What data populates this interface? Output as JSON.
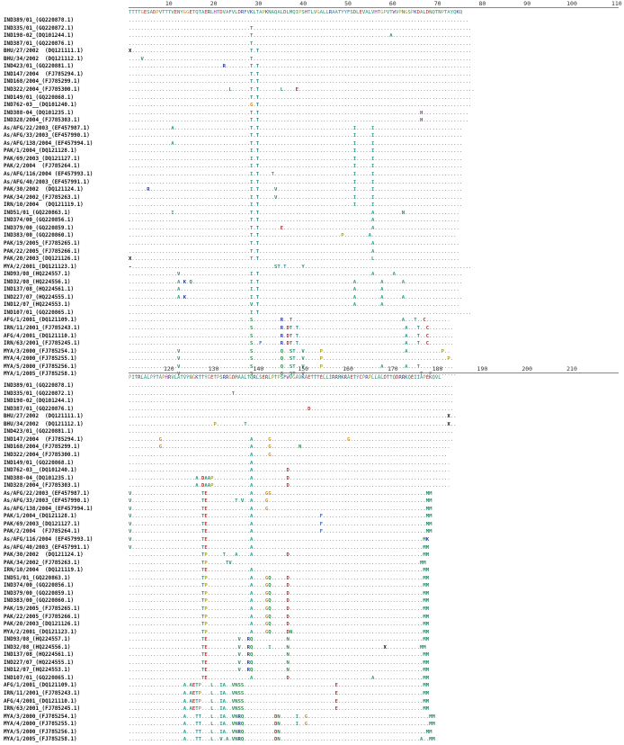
{
  "block1": {
    "ruler": [
      "10",
      "20",
      "30",
      "40",
      "50",
      "60",
      "70",
      "80",
      "90",
      "100",
      "110"
    ],
    "consensus": "TTTTGESADPVTTTVENYGGETQTAERLHTDVAFVLDRFVKLTAPKNAQALDLMQIPSHTLVGALLRAATYYFSDLEVALVHTGPVTWVPNGSPKDALDNQTNPTAYQKQ",
    "rows": [
      {
        "label": "IND389/01_(GQ220878.1)",
        "seq": "................................................................................................................"
      },
      {
        "label": "IND335/01_(GQ220872.1)",
        "seq": "........................................T........................................................................"
      },
      {
        "label": "IND198-02_(DQ101244.1)",
        "seq": "........................................T.............................................A.........................."
      },
      {
        "label": "IND387/01_(GQ220876.1)",
        "seq": "........................................T........................................................................"
      },
      {
        "label": "BHU/27/2002  (DQ121111.1)",
        "seq": "X.......................................T.T......................................................................"
      },
      {
        "label": "BHU/34/2002  (DQ121112.1)",
        "seq": "....V...................................T........................................................................"
      },
      {
        "label": "IND423/01_(GQ220881.1)",
        "seq": "...............................R........T.T......................................................................"
      },
      {
        "label": "IND147/2004  (FJ785294.1)",
        "seq": "........................................T.T......................................................................"
      },
      {
        "label": "IND168/2004_(FJ785299.1)",
        "seq": "........................................T.T......................................................................"
      },
      {
        "label": "IND322/2004_(FJ785300.1)",
        "seq": ".................................L......T.T.......L....E.........................................................."
      },
      {
        "label": "IND149/01_(GQ220868.1)",
        "seq": "........................................T.T......................................................................"
      },
      {
        "label": "IND762-03__(DQ101240.1)",
        "seq": "........................................G.T......................................................................"
      },
      {
        "label": "IND388-04_(DQ101235.1)",
        "seq": "........................................T.T.....................................................H..............."
      },
      {
        "label": "IND328/2004_(FJ785303.1)",
        "seq": "........................................T.T.....................................................H..............."
      },
      {
        "label": "As/AFG/22/2003_(EF457987.1)",
        "seq": "..............A.........................T.T...............................I.....I............................."
      },
      {
        "label": "As/AFG/33/2003_(EF457990.1)",
        "seq": "........................................T.T...............................I.....I............................."
      },
      {
        "label": "As/AFG/138/2004_(EF457994.1)",
        "seq": "..............A.........................T.T...............................I.....I............................."
      },
      {
        "label": "PAK/1/2004_(DQ121128.1)",
        "seq": "........................................I.T...............................I.....I............................."
      },
      {
        "label": "PAK/69/2003_(DQ121127.1)",
        "seq": "........................................I.T...............................I.....I............................."
      },
      {
        "label": "PAK/2/2004  (FJ785264.1)",
        "seq": "........................................I.T...............................I.....I............................."
      },
      {
        "label": "As/AFG/116/2004 (EF457993.1)",
        "seq": "........................................I.T....T..........................I.....I............................."
      },
      {
        "label": "As/AFG/40/2003_(EF457991.1)",
        "seq": "........................................I.T...............................I.....I............................."
      },
      {
        "label": "PAK/30/2002  (DQ121124.1)",
        "seq": "......R.................................I.T.....V.........................I.....I............................."
      },
      {
        "label": "PAK/34/2002_(FJ785263.1)",
        "seq": "........................................I.T.....V.........................I.....I............................."
      },
      {
        "label": "IRN/10/2004  (DQ121119.1)",
        "seq": "........................................I.T...............................I.....I............................."
      },
      {
        "label": "IND51/01_(GQ220863.1)",
        "seq": "..............I.........................T.T.....................................A.........N.................."
      },
      {
        "label": "IND374/00_(GQ220856.1)",
        "seq": "........................................T.T.....................................A............................"
      },
      {
        "label": "IND379/00_(GQ220859.1)",
        "seq": "........................................T.T.......E.............................A............................"
      },
      {
        "label": "IND383/00_(GQ220860.1)",
        "seq": "........................................T.T...........................P........A............................"
      },
      {
        "label": "PAK/19/2005_(FJ785265.1)",
        "seq": "........................................T.T.....................................A............................"
      },
      {
        "label": "PAK/22/2005_(FJ785266.1)",
        "seq": "........................................T.T.....................................A............................"
      },
      {
        "label": "PAK/20/2003_(DQ121126.1)",
        "seq": "X.......................................T.T.....................................L............................"
      },
      {
        "label": "MYA/2/2001_(DQ121123.1)",
        "seq": "-...............................................ST.T.....Y......................................................."
      },
      {
        "label": "IND93/08_(HQ224557.1)",
        "seq": "................V.......................I.T.....................................A......A......................"
      },
      {
        "label": "IND32/08_(HQ224556.1)",
        "seq": "................A.K.Q...................I.T...............................A........A......A..................."
      },
      {
        "label": "IND137/08_(HQ224561.1)",
        "seq": "................A.......................I.T...............................A........A........................."
      },
      {
        "label": "IND227/07_(HQ224555.1)",
        "seq": "................A.K.....................I.T...............................A........A......A..................."
      },
      {
        "label": "IND12/07_(HQ224553.1)",
        "seq": "........................................V.T...............................A........A........................."
      },
      {
        "label": "IND107/01_(GQ220865.1)",
        "seq": "........................................I.T......................................................................"
      },
      {
        "label": "AFG/1/2001_(DQ121109.1)",
        "seq": "........................................S.........R..T....................................A...T..C........"
      },
      {
        "label": "IRN/11/2001_(FJ785243.1)",
        "seq": "........................................S.........R.DT.T...................................A...T..C........"
      },
      {
        "label": "AFG/4/2001_(DQ121110.1)",
        "seq": "........................................S.........R.DT.T...................................A...T..C........"
      },
      {
        "label": "IRN/63/2001_(FJ785245.1)",
        "seq": "........................................S..F......R.DT.T...................................A...T..C........"
      },
      {
        "label": "MYA/3/2000_(FJ785254.1)",
        "seq": "................V.......................S.........Q..ST..V.....P...........................A...........P.."
      },
      {
        "label": "MYA/4/2000_(FJ785255.1)",
        "seq": "................V.......................S.........Q..ST..V.....P.........................................P."
      },
      {
        "label": "MYA/5/2000_(FJ785256.1)",
        "seq": "................V.......................S.........Q..ST..V.....P...................A.......A...T..........."
      },
      {
        "label": "MYA/1/2005_(FJ785258.1)",
        "seq": "................V.......................S.........Q..ST..V......................................T..P........"
      }
    ]
  },
  "block2": {
    "ruler": [
      "120",
      "130",
      "140",
      "150",
      "160",
      "170",
      "180",
      "190",
      "200",
      "210"
    ],
    "consensus": "PITRLALPYTAPHRVLATVYNGKTTYGETPSRRGDMAALTQRLSERLPTPSFWVGAVKAETTTELLIRRMKRAETYCPRPLLALDTTQDRRKQEIIAPEKQVL",
    "rows": [
      {
        "label": "IND389/01_(GQ220878.1)",
        "seq": "..........................................................................................................."
      },
      {
        "label": "IND335/01_(GQ220872.1)",
        "seq": "..................................T........................................................................"
      },
      {
        "label": "IND198-02_(DQ101244.1)",
        "seq": "..........................................................................................................."
      },
      {
        "label": "IND387/01_(GQ220876.1)",
        "seq": "...........................................................D..............................................."
      },
      {
        "label": "BHU/27/2002  (DQ121111.1)",
        "seq": ".........................................................................................................X.."
      },
      {
        "label": "BHU/34/2002  (DQ121112.1)",
        "seq": "............................P.........T..................................................................X.."
      },
      {
        "label": "IND423/01_(GQ220881.1)",
        "seq": "..........................................................................................................."
      },
      {
        "label": "IND147/2004  (FJ785294.1)",
        "seq": "..........G.............................A.....G.........................G.................................."
      },
      {
        "label": "IND168/2004_(FJ785299.1)",
        "seq": "..........G.............................A.....G.........N................................................."
      },
      {
        "label": "IND322/2004_(FJ785300.1)",
        "seq": "........................................A.....G.........................................................."
      },
      {
        "label": "IND149/01_(GQ220868.1)",
        "seq": "........................................A................................................................."
      },
      {
        "label": "IND762-03__(DQ101240.1)",
        "seq": "........................................A...........D....................................................."
      },
      {
        "label": "IND388-04_(DQ101235.1)",
        "seq": "......................A.DAAP............A...........D....................................................."
      },
      {
        "label": "IND328/2004_(FJ785303.1)",
        "seq": "......................A.DAAP............A...........D....................................................."
      },
      {
        "label": "As/AFG/22/2003_(EF457987.1)",
        "seq": "V.......................TE..............A....GG...................................................MM"
      },
      {
        "label": "As/AFG/33/2003_(EF457990.1)",
        "seq": "V.......................TE.........T.V..A....G....................................................MM"
      },
      {
        "label": "As/AFG/138/2004_(EF457994.1)",
        "seq": "V.......................TE..............A....G....................................................MM"
      },
      {
        "label": "PAK/1/2004_(DQ121128.1)",
        "seq": "V.......................TE..............A......................F..................................MM"
      },
      {
        "label": "PAK/69/2003_(DQ121127.1)",
        "seq": "V.......................TE..............A......................F..................................MM"
      },
      {
        "label": "PAK/2/2004  (FJ785264.1)",
        "seq": "V.......................TE..............A......................F..................................MM"
      },
      {
        "label": "As/AFG/116/2004 (EF457993.1)",
        "seq": "V.......................TE..............A........................................................MK"
      },
      {
        "label": "As/AFG/40/2003_(EF457991.1)",
        "seq": "V.......................TE..............A........................................................MM"
      },
      {
        "label": "PAK/30/2002  (DQ121124.1)",
        "seq": "........................TP.....T...A....A...........D............................................MM"
      },
      {
        "label": "PAK/34/2002_(FJ785263.1)",
        "seq": "........................TP......TV..............................................................MM"
      },
      {
        "label": "IRN/10/2004  (DQ121119.1)",
        "seq": "........................TE..............A........................................................MM"
      },
      {
        "label": "IND51/01_(GQ220863.1)",
        "seq": "........................TP..............A....GQ.....D............................................MM"
      },
      {
        "label": "IND374/00_(GQ220856.1)",
        "seq": "........................TP..............A....GQ.....D............................................MM"
      },
      {
        "label": "IND379/00_(GQ220859.1)",
        "seq": "........................TP..............A....GQ.....D............................................MM"
      },
      {
        "label": "IND383/00_(GQ220860.1)",
        "seq": "........................TP..............A....GQ.....D............................................MM"
      },
      {
        "label": "PAK/19/2005_(FJ785265.1)",
        "seq": "........................TP..............A....GQ.....D............................................MM"
      },
      {
        "label": "PAK/22/2005_(FJ785266.1)",
        "seq": "........................TP..............A....GQ.....D............................................MM"
      },
      {
        "label": "PAK/20/2003_(DQ121126.1)",
        "seq": "........................TP..............A....GQ.....D............................................MM"
      },
      {
        "label": "MYA/2/2001_(DQ121123.1)",
        "seq": "........................TP..............A....GQ.....DN...........................................MM"
      },
      {
        "label": "IND93/08_(HQ224557.1)",
        "seq": "........................TE..........V..RQ...........N............................................MM"
      },
      {
        "label": "IND32/08_(HQ224556.1)",
        "seq": "........................TE..........V..RQ.....I.....N...............................X...........MM"
      },
      {
        "label": "IND137/08_(HQ224561.1)",
        "seq": "........................TE..........V..RQ...........N............................................MM"
      },
      {
        "label": "IND227/07_(HQ224555.1)",
        "seq": "........................TE..........V..RQ...........N............................................MM"
      },
      {
        "label": "IND12/07_(HQ224553.1)",
        "seq": "........................TE..........V..RQ...........N............................................MM"
      },
      {
        "label": "IND107/01_(GQ220865.1)",
        "seq": "........................TE..............A...........D...........................A................MM"
      },
      {
        "label": "AFG/1/2001_(DQ121109.1)",
        "seq": "..................A.AETP...L..IA..VNSS..............................E............................MM"
      },
      {
        "label": "IRN/11/2001_(FJ785243.1)",
        "seq": "..................A.AETP...L..IA..VNSS..............................E............................MM"
      },
      {
        "label": "AFG/4/2001_(DQ121110.1)",
        "seq": "..................A.AETP...L..IA..VNSS..............................E............................MM"
      },
      {
        "label": "IRN/63/2001_(FJ785245.1)",
        "seq": "..................A.AETP...L..IA..VNSS..............................E............................MM"
      },
      {
        "label": "MYA/3/2000_(FJ785254.1)",
        "seq": "..................A...TT...L..IA..VNRQ..........DN.....I..G........................................MM"
      },
      {
        "label": "MYA/4/2000_(FJ785255.1)",
        "seq": "..................A...TT...L..IA..VNRQ..........DN.....I..G........................................MM"
      },
      {
        "label": "MYA/5/2000_(FJ785256.1)",
        "seq": "..................A...TT...L..IA..VNRQ..........DN................................................MM"
      },
      {
        "label": "MYA/1/2005_(FJ785258.1)",
        "seq": "..................A...TT...L..V.A.VNRQ..........DN..............................................A..MM"
      }
    ]
  }
}
